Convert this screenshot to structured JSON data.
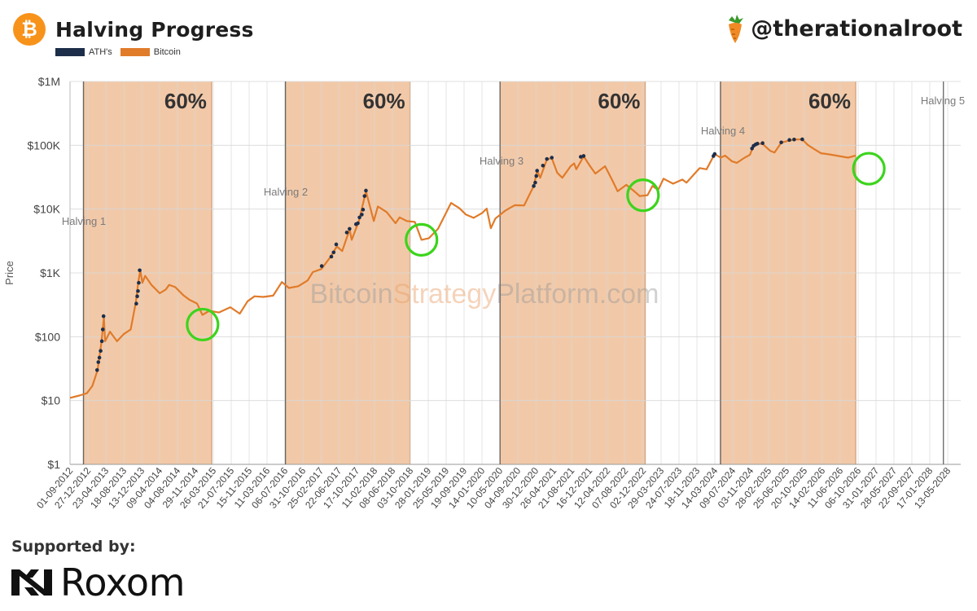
{
  "header": {
    "title": "Halving Progress",
    "logo_icon": "bitcoin-icon",
    "handle": "@therationalroot",
    "handle_icon": "carrot-icon"
  },
  "footer": {
    "supported_label": "Supported by:",
    "sponsor": "Roxom",
    "sponsor_icon": "roxom-logo-icon"
  },
  "colors": {
    "bitcoin": "#e07b2a",
    "ath": "#1c2e4a",
    "band": "#f2c9a8",
    "band_edge": "#d9a77e",
    "circle": "#3cd41c",
    "halving_line": "#666666"
  },
  "chart_data": {
    "type": "line",
    "title": "Halving Progress",
    "ylabel": "Price",
    "xlabel": "",
    "y_scale": "log",
    "ylim": [
      1,
      1000000
    ],
    "xlim": [
      "2012-09-01",
      "2028-05-13"
    ],
    "grid": true,
    "legend": [
      "ATH's",
      "Bitcoin"
    ],
    "legend_position": "top-left",
    "watermark": "BitcoinStrategyPlatform.com",
    "watermark_parts": [
      "Bitcoin",
      "Strategy",
      "Platform.com"
    ],
    "y_ticks": [
      {
        "value": 1,
        "label": "$1"
      },
      {
        "value": 10,
        "label": "$10"
      },
      {
        "value": 100,
        "label": "$100"
      },
      {
        "value": 1000,
        "label": "$1K"
      },
      {
        "value": 10000,
        "label": "$10K"
      },
      {
        "value": 100000,
        "label": "$100K"
      },
      {
        "value": 1000000,
        "label": "$1M"
      }
    ],
    "x_ticks": [
      "01-09-2012",
      "27-12-2012",
      "23-04-2013",
      "18-08-2013",
      "13-12-2013",
      "09-04-2014",
      "04-08-2014",
      "29-11-2014",
      "26-03-2015",
      "21-07-2015",
      "15-11-2015",
      "11-03-2016",
      "06-07-2016",
      "31-10-2016",
      "25-02-2017",
      "22-06-2017",
      "17-10-2017",
      "11-02-2018",
      "08-06-2018",
      "03-10-2018",
      "28-01-2019",
      "25-05-2019",
      "19-09-2019",
      "14-01-2020",
      "10-05-2020",
      "04-09-2020",
      "30-12-2020",
      "26-04-2021",
      "21-08-2021",
      "16-12-2021",
      "12-04-2022",
      "07-08-2022",
      "02-12-2022",
      "29-03-2023",
      "24-07-2023",
      "18-11-2023",
      "14-03-2024",
      "09-07-2024",
      "03-11-2024",
      "28-02-2025",
      "25-06-2025",
      "20-10-2025",
      "14-02-2026",
      "11-06-2026",
      "06-10-2026",
      "31-01-2027",
      "28-05-2027",
      "22-09-2027",
      "17-01-2028",
      "13-05-2028"
    ],
    "halvings": [
      {
        "label": "Halving 1",
        "date": "2012-11-28"
      },
      {
        "label": "Halving 2",
        "date": "2016-07-09"
      },
      {
        "label": "Halving 3",
        "date": "2020-05-11"
      },
      {
        "label": "Halving 4",
        "date": "2024-04-20"
      },
      {
        "label": "Halving 5",
        "date": "2028-04-15"
      }
    ],
    "bands": [
      {
        "start": "2012-11-28",
        "end": "2015-03-15",
        "label": "60%"
      },
      {
        "start": "2016-07-09",
        "end": "2018-10-01",
        "label": "60%"
      },
      {
        "start": "2020-05-11",
        "end": "2022-12-15",
        "label": "60%"
      },
      {
        "start": "2024-04-20",
        "end": "2026-09-20",
        "label": "60%"
      }
    ],
    "highlights": [
      {
        "date": "2015-01-15",
        "value": 155
      },
      {
        "date": "2018-12-15",
        "value": 3300
      },
      {
        "date": "2022-12-01",
        "value": 16500
      },
      {
        "date": "2026-12-15",
        "value": 43000
      }
    ],
    "series": [
      {
        "name": "Bitcoin",
        "x": [
          "2012-09-01",
          "2012-11-01",
          "2012-12-20",
          "2013-01-25",
          "2013-02-28",
          "2013-03-25",
          "2013-04-10",
          "2013-04-18",
          "2013-05-20",
          "2013-07-05",
          "2013-08-18",
          "2013-10-02",
          "2013-11-05",
          "2013-11-20",
          "2013-12-04",
          "2013-12-18",
          "2014-01-05",
          "2014-02-15",
          "2014-04-10",
          "2014-05-20",
          "2014-06-10",
          "2014-07-20",
          "2014-09-10",
          "2014-10-20",
          "2014-12-10",
          "2015-01-14",
          "2015-03-01",
          "2015-05-01",
          "2015-07-15",
          "2015-09-15",
          "2015-11-05",
          "2015-12-20",
          "2016-02-15",
          "2016-04-20",
          "2016-06-16",
          "2016-08-01",
          "2016-10-01",
          "2016-12-01",
          "2017-01-04",
          "2017-03-01",
          "2017-05-01",
          "2017-06-10",
          "2017-07-15",
          "2017-09-01",
          "2017-09-15",
          "2017-11-01",
          "2017-12-17",
          "2018-02-06",
          "2018-03-05",
          "2018-05-01",
          "2018-06-28",
          "2018-07-25",
          "2018-09-10",
          "2018-11-01",
          "2018-12-15",
          "2019-02-01",
          "2019-04-02",
          "2019-06-26",
          "2019-08-20",
          "2019-10-01",
          "2019-11-20",
          "2020-01-15",
          "2020-02-14",
          "2020-03-12",
          "2020-04-10",
          "2020-06-15",
          "2020-08-15",
          "2020-10-15",
          "2020-12-17",
          "2021-01-08",
          "2021-01-28",
          "2021-03-13",
          "2021-04-14",
          "2021-05-20",
          "2021-06-22",
          "2021-08-15",
          "2021-09-07",
          "2021-09-21",
          "2021-11-08",
          "2021-12-20",
          "2022-01-24",
          "2022-03-28",
          "2022-05-12",
          "2022-06-18",
          "2022-08-14",
          "2022-09-30",
          "2022-11-09",
          "2022-12-30",
          "2023-01-31",
          "2023-03-10",
          "2023-04-14",
          "2023-06-15",
          "2023-08-15",
          "2023-09-11",
          "2023-10-25",
          "2023-12-06",
          "2024-01-20",
          "2024-03-13",
          "2024-04-20",
          "2024-05-20",
          "2024-07-05",
          "2024-08-05",
          "2024-09-20",
          "2024-10-29",
          "2024-11-22",
          "2024-12-17",
          "2025-01-20",
          "2025-03-10",
          "2025-04-08",
          "2025-05-22",
          "2025-07-14",
          "2025-08-14",
          "2025-10-06",
          "2025-11-10",
          "2025-12-20",
          "2026-02-05",
          "2026-04-01",
          "2026-06-01",
          "2026-08-01",
          "2026-09-20"
        ],
        "values": [
          11,
          12,
          13,
          17,
          30,
          80,
          200,
          85,
          120,
          85,
          110,
          130,
          350,
          700,
          1100,
          700,
          900,
          650,
          480,
          550,
          650,
          600,
          450,
          380,
          330,
          220,
          255,
          240,
          290,
          230,
          360,
          430,
          420,
          440,
          720,
          580,
          620,
          760,
          1030,
          1150,
          1800,
          2600,
          2200,
          4800,
          3300,
          6500,
          19000,
          6500,
          11000,
          9000,
          6000,
          7400,
          6500,
          6300,
          3300,
          3500,
          4900,
          12500,
          10300,
          8200,
          7300,
          8700,
          10200,
          5000,
          7100,
          9500,
          11500,
          11400,
          23000,
          40000,
          31000,
          60000,
          63000,
          37000,
          31000,
          47000,
          52000,
          42000,
          67000,
          47000,
          36000,
          47000,
          29000,
          19000,
          24000,
          19400,
          16000,
          16500,
          23000,
          20000,
          30000,
          25000,
          29000,
          26000,
          34000,
          44000,
          42000,
          73000,
          64000,
          69000,
          56000,
          53000,
          63000,
          71000,
          99000,
          106000,
          105000,
          82000,
          77000,
          110000,
          119000,
          123000,
          124000,
          102000,
          88000,
          75000,
          72000,
          68000,
          64000,
          69000
        ],
        "color": "#e07b2a"
      },
      {
        "name": "ATH's",
        "x": [
          "2013-02-25",
          "2013-03-05",
          "2013-03-12",
          "2013-03-20",
          "2013-03-28",
          "2013-04-03",
          "2013-04-08",
          "2013-11-08",
          "2013-11-14",
          "2013-11-19",
          "2013-11-24",
          "2013-11-30",
          "2017-03-03",
          "2017-05-05",
          "2017-05-20",
          "2017-06-06",
          "2017-08-14",
          "2017-09-01",
          "2017-10-13",
          "2017-10-25",
          "2017-11-05",
          "2017-11-20",
          "2017-11-28",
          "2017-12-08",
          "2017-12-17",
          "2020-12-17",
          "2020-12-27",
          "2021-01-03",
          "2021-01-08",
          "2021-02-15",
          "2021-03-13",
          "2021-04-14",
          "2021-10-20",
          "2021-11-08",
          "2024-03-05",
          "2024-03-13",
          "2024-11-12",
          "2024-11-22",
          "2024-12-05",
          "2024-12-17",
          "2025-01-20",
          "2025-05-22",
          "2025-07-14",
          "2025-08-14",
          "2025-10-06"
        ],
        "values": [
          30,
          40,
          47,
          60,
          85,
          130,
          210,
          330,
          430,
          520,
          700,
          1100,
          1280,
          1800,
          2100,
          2800,
          4300,
          4900,
          5800,
          6000,
          7400,
          8200,
          9800,
          16000,
          19500,
          23000,
          26000,
          33000,
          40000,
          48000,
          61000,
          64000,
          66000,
          68000,
          68000,
          73000,
          89000,
          98000,
          103000,
          106000,
          108000,
          111000,
          121000,
          123000,
          124000
        ],
        "color": "#1c2e4a"
      }
    ]
  }
}
